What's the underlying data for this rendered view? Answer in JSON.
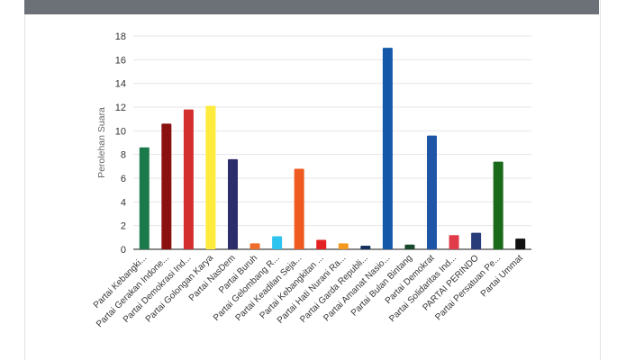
{
  "chart_data": {
    "type": "bar",
    "ylabel": "Perolehan Suara",
    "xlabel": "",
    "ylim": [
      0,
      18
    ],
    "yticks": [
      0,
      2,
      4,
      6,
      8,
      10,
      12,
      14,
      16,
      18
    ],
    "grid": true,
    "legend": "none",
    "categories": [
      "Partai Kebangki...",
      "Partai Gerakan Indone...",
      "Partai Demokrasi Ind...",
      "Partai Golongan Karya",
      "Partai NasDem",
      "Partai Buruh",
      "Partai Gelombang R...",
      "Partai Keadilan Seja...",
      "Partai Kebangkitan ...",
      "Partai Hati Nurani Ra...",
      "Partai Garda Republi...",
      "Partai Amanat Nasio...",
      "Partai Bulan Bintang",
      "Partai Demokrat",
      "Partai Solidaritas Ind...",
      "PARTAI PERINDO",
      "Partai Persatuan Pe...",
      "Partai Ummat"
    ],
    "values": [
      8.6,
      10.6,
      11.8,
      12.1,
      7.6,
      0.5,
      1.1,
      6.8,
      0.8,
      0.5,
      0.3,
      17.0,
      0.4,
      9.6,
      1.2,
      1.4,
      7.4,
      0.9
    ],
    "colors": [
      "#1a7a4c",
      "#8b1010",
      "#d32f2f",
      "#ffeb3b",
      "#2c2d6b",
      "#ef6c28",
      "#2ec4f0",
      "#ef5a20",
      "#e52222",
      "#f39a1e",
      "#16315e",
      "#1557a8",
      "#1a4a2c",
      "#1f55a7",
      "#e03b4a",
      "#283c7a",
      "#1a6a1a",
      "#111111"
    ]
  }
}
